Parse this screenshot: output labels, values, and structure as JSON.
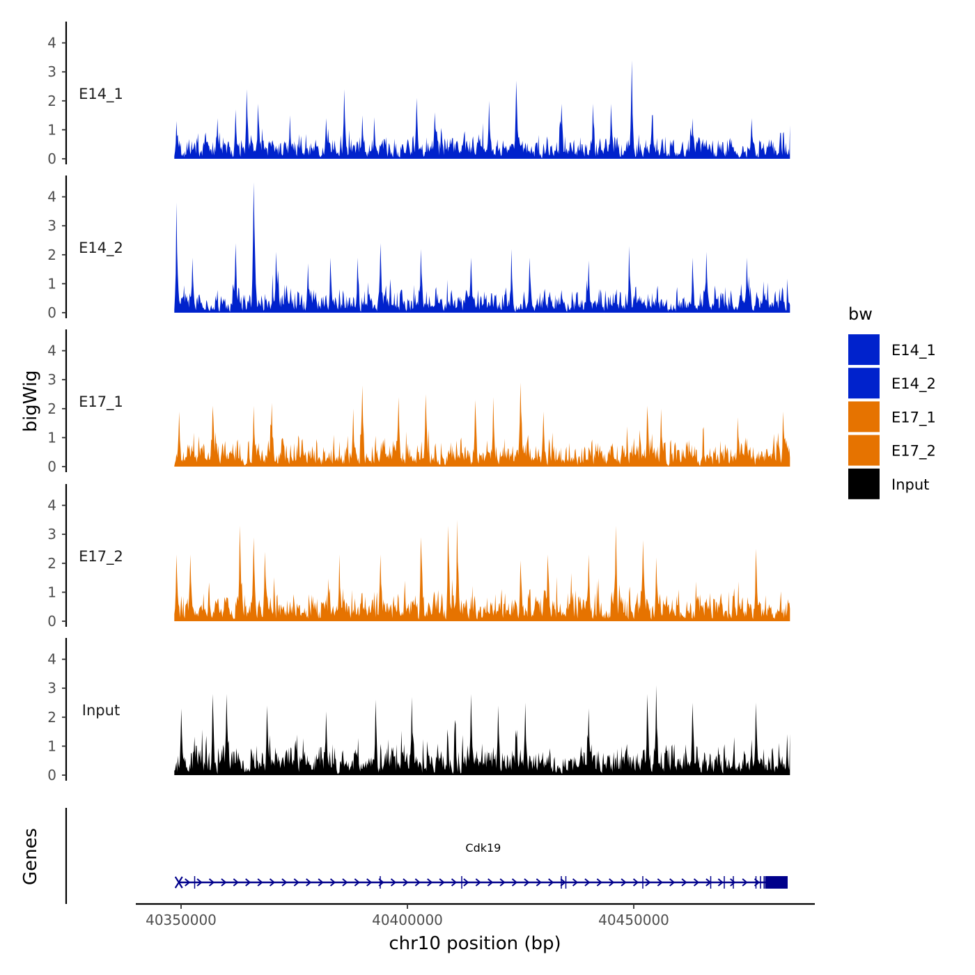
{
  "chart_data": {
    "type": "area",
    "ylabel": "bigWig",
    "genes_label": "Genes",
    "xlabel": "chr10 position (bp)",
    "xlim": [
      40340000,
      40490000
    ],
    "data_range": [
      40348500,
      40484500
    ],
    "ylim": [
      0,
      4.6
    ],
    "y_ticks": [
      "0",
      "1",
      "2",
      "3",
      "4"
    ],
    "x_ticks": [
      {
        "value": 40350000,
        "label": "40350000"
      },
      {
        "value": 40400000,
        "label": "40400000"
      },
      {
        "value": 40450000,
        "label": "40450000"
      }
    ],
    "legend": {
      "title": "bw",
      "entries": [
        {
          "label": "E14_1",
          "color": "#0022CC"
        },
        {
          "label": "E14_2",
          "color": "#0022CC"
        },
        {
          "label": "E17_1",
          "color": "#E67300"
        },
        {
          "label": "E17_2",
          "color": "#E67300"
        },
        {
          "label": "Input",
          "color": "#000000"
        }
      ]
    },
    "series": [
      {
        "name": "E14_1",
        "color": "#0022CC",
        "baseline": 0.9,
        "seed": 11,
        "peaks": [
          {
            "pos": 40349000,
            "value": 1.3
          },
          {
            "pos": 40358000,
            "value": 1.4
          },
          {
            "pos": 40362000,
            "value": 1.7
          },
          {
            "pos": 40364500,
            "value": 2.4
          },
          {
            "pos": 40367000,
            "value": 1.9
          },
          {
            "pos": 40374000,
            "value": 1.5
          },
          {
            "pos": 40382000,
            "value": 1.4
          },
          {
            "pos": 40386000,
            "value": 2.4
          },
          {
            "pos": 40390000,
            "value": 1.5
          },
          {
            "pos": 40402000,
            "value": 2.1
          },
          {
            "pos": 40406000,
            "value": 1.6
          },
          {
            "pos": 40418000,
            "value": 2.0
          },
          {
            "pos": 40424000,
            "value": 2.7
          },
          {
            "pos": 40434000,
            "value": 1.9
          },
          {
            "pos": 40441000,
            "value": 1.9
          },
          {
            "pos": 40445000,
            "value": 1.9
          },
          {
            "pos": 40449500,
            "value": 3.4
          },
          {
            "pos": 40454000,
            "value": 1.5
          },
          {
            "pos": 40463000,
            "value": 1.4
          },
          {
            "pos": 40476000,
            "value": 1.4
          }
        ]
      },
      {
        "name": "E14_2",
        "color": "#0022CC",
        "baseline": 0.9,
        "seed": 23,
        "peaks": [
          {
            "pos": 40349000,
            "value": 3.8
          },
          {
            "pos": 40352500,
            "value": 1.9
          },
          {
            "pos": 40362000,
            "value": 2.4
          },
          {
            "pos": 40366000,
            "value": 4.5
          },
          {
            "pos": 40371000,
            "value": 2.1
          },
          {
            "pos": 40378000,
            "value": 1.7
          },
          {
            "pos": 40383000,
            "value": 1.9
          },
          {
            "pos": 40389000,
            "value": 1.9
          },
          {
            "pos": 40394000,
            "value": 2.4
          },
          {
            "pos": 40403000,
            "value": 2.2
          },
          {
            "pos": 40414000,
            "value": 1.9
          },
          {
            "pos": 40423000,
            "value": 2.2
          },
          {
            "pos": 40427000,
            "value": 1.9
          },
          {
            "pos": 40440000,
            "value": 1.8
          },
          {
            "pos": 40449000,
            "value": 2.3
          },
          {
            "pos": 40463000,
            "value": 1.9
          },
          {
            "pos": 40466000,
            "value": 2.1
          },
          {
            "pos": 40475000,
            "value": 1.9
          }
        ]
      },
      {
        "name": "E17_1",
        "color": "#E67300",
        "baseline": 1.05,
        "seed": 37,
        "peaks": [
          {
            "pos": 40349500,
            "value": 1.9
          },
          {
            "pos": 40357000,
            "value": 2.1
          },
          {
            "pos": 40366000,
            "value": 2.1
          },
          {
            "pos": 40370000,
            "value": 2.2
          },
          {
            "pos": 40388000,
            "value": 2.0
          },
          {
            "pos": 40390000,
            "value": 2.8
          },
          {
            "pos": 40398000,
            "value": 2.4
          },
          {
            "pos": 40404000,
            "value": 2.5
          },
          {
            "pos": 40415000,
            "value": 2.3
          },
          {
            "pos": 40419000,
            "value": 2.4
          },
          {
            "pos": 40425000,
            "value": 2.9
          },
          {
            "pos": 40430000,
            "value": 1.9
          },
          {
            "pos": 40453000,
            "value": 2.1
          },
          {
            "pos": 40456000,
            "value": 2.0
          },
          {
            "pos": 40473000,
            "value": 1.7
          },
          {
            "pos": 40483000,
            "value": 1.9
          }
        ]
      },
      {
        "name": "E17_2",
        "color": "#E67300",
        "baseline": 1.15,
        "seed": 41,
        "peaks": [
          {
            "pos": 40349000,
            "value": 2.3
          },
          {
            "pos": 40352000,
            "value": 2.3
          },
          {
            "pos": 40363000,
            "value": 3.3
          },
          {
            "pos": 40366000,
            "value": 2.9
          },
          {
            "pos": 40368500,
            "value": 2.4
          },
          {
            "pos": 40385000,
            "value": 2.3
          },
          {
            "pos": 40394000,
            "value": 2.3
          },
          {
            "pos": 40403000,
            "value": 2.9
          },
          {
            "pos": 40409000,
            "value": 3.3
          },
          {
            "pos": 40411000,
            "value": 3.5
          },
          {
            "pos": 40425000,
            "value": 2.1
          },
          {
            "pos": 40431000,
            "value": 2.3
          },
          {
            "pos": 40440000,
            "value": 2.3
          },
          {
            "pos": 40446000,
            "value": 3.3
          },
          {
            "pos": 40452000,
            "value": 2.8
          },
          {
            "pos": 40455000,
            "value": 2.2
          },
          {
            "pos": 40477000,
            "value": 2.5
          }
        ]
      },
      {
        "name": "Input",
        "color": "#000000",
        "baseline": 1.3,
        "seed": 53,
        "peaks": [
          {
            "pos": 40350000,
            "value": 2.3
          },
          {
            "pos": 40357000,
            "value": 2.8
          },
          {
            "pos": 40360000,
            "value": 2.8
          },
          {
            "pos": 40369000,
            "value": 2.4
          },
          {
            "pos": 40382000,
            "value": 2.2
          },
          {
            "pos": 40393000,
            "value": 2.6
          },
          {
            "pos": 40401000,
            "value": 2.7
          },
          {
            "pos": 40414000,
            "value": 2.8
          },
          {
            "pos": 40420000,
            "value": 2.4
          },
          {
            "pos": 40426000,
            "value": 2.5
          },
          {
            "pos": 40440000,
            "value": 2.3
          },
          {
            "pos": 40453000,
            "value": 2.8
          },
          {
            "pos": 40455000,
            "value": 3.1
          },
          {
            "pos": 40463000,
            "value": 2.5
          },
          {
            "pos": 40477000,
            "value": 2.5
          }
        ]
      }
    ],
    "gene": {
      "name": "Cdk19",
      "color": "#00008B",
      "start": 40349500,
      "end": 40484000,
      "exon_start": 40479000,
      "exon_marks": [
        40353000,
        40394000,
        40412000,
        40434000,
        40435000,
        40452000,
        40467000,
        40470000,
        40472000,
        40477000,
        40478000,
        40478800
      ]
    }
  }
}
